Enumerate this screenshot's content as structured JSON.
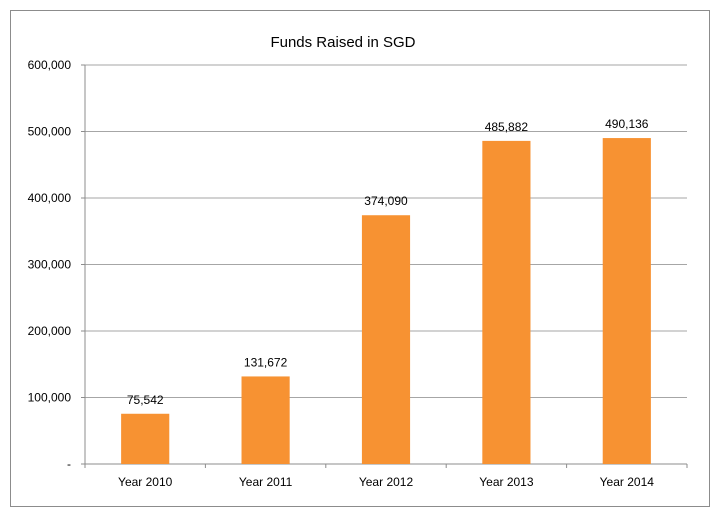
{
  "chart_data": {
    "type": "bar",
    "title": "Funds Raised in SGD",
    "categories": [
      "Year 2010",
      "Year 2011",
      "Year 2012",
      "Year 2013",
      "Year 2014"
    ],
    "values": [
      75542,
      131672,
      374090,
      485882,
      490136
    ],
    "data_labels": [
      "75,542",
      "131,672",
      "374,090",
      "485,882",
      "490,136"
    ],
    "ylim": [
      0,
      600000
    ],
    "yticks": [
      0,
      100000,
      200000,
      300000,
      400000,
      500000,
      600000
    ],
    "ytick_labels": [
      "-",
      "100,000",
      "200,000",
      "300,000",
      "400,000",
      "500,000",
      "600,000"
    ],
    "grid": true,
    "legend": "none",
    "bar_color": "#F79232",
    "gridline_color": "#A6A6A6"
  }
}
